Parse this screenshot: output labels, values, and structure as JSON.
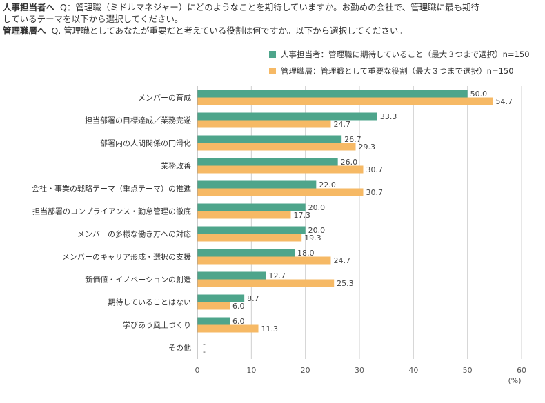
{
  "question": {
    "hr_label": "人事担当者へ",
    "hr_text_line1": "Q：管理職（ミドルマネジャー）にどのようなことを期待していますか。お勤めの会社で、管理職に最も期待",
    "hr_text_line2": "しているテーマを以下から選択してください。",
    "mgr_label": "管理職層へ",
    "mgr_text": "Q. 管理職としてあなたが重要だと考えている役割は何ですか。以下から選択してください。"
  },
  "colors": {
    "series1": "#4ea58b",
    "series2": "#f6b965",
    "axis": "#999999",
    "grid": "#cfcfcf"
  },
  "chart_data": {
    "type": "bar",
    "orientation": "horizontal",
    "categories": [
      "メンバーの育成",
      "担当部署の目標達成／業務完遂",
      "部署内の人間関係の円滑化",
      "業務改善",
      "会社・事業の戦略テーマ（重点テーマ）の推進",
      "担当部署のコンプライアンス・勤怠管理の徹底",
      "メンバーの多様な働き方への対応",
      "メンバーのキャリア形成・選択の支援",
      "新価値・イノベーションの創造",
      "期待していることはない",
      "学びあう風土づくり",
      "その他"
    ],
    "series": [
      {
        "name": "人事担当者：管理職に期待していること（最大３つまで選択）n=150",
        "values": [
          50.0,
          33.3,
          26.7,
          26.0,
          22.0,
          20.0,
          20.0,
          18.0,
          12.7,
          8.7,
          6.0,
          null
        ],
        "labels": [
          "50.0",
          "33.3",
          "26.7",
          "26.0",
          "22.0",
          "20.0",
          "20.0",
          "18.0",
          "12.7",
          "8.7",
          "6.0",
          "-"
        ]
      },
      {
        "name": "管理職層：管理職として重要な役割（最大３つまで選択）n=150",
        "values": [
          54.7,
          24.7,
          29.3,
          30.7,
          30.7,
          17.3,
          19.3,
          24.7,
          25.3,
          6.0,
          11.3,
          null
        ],
        "labels": [
          "54.7",
          "24.7",
          "29.3",
          "30.7",
          "30.7",
          "17.3",
          "19.3",
          "24.7",
          "25.3",
          "6.0",
          "11.3",
          "-"
        ]
      }
    ],
    "xlim": [
      0,
      60
    ],
    "xticks": [
      "0",
      "10",
      "20",
      "30",
      "40",
      "50",
      "60"
    ],
    "xunit": "(%)",
    "grid": true,
    "legend_position": "top-right"
  }
}
